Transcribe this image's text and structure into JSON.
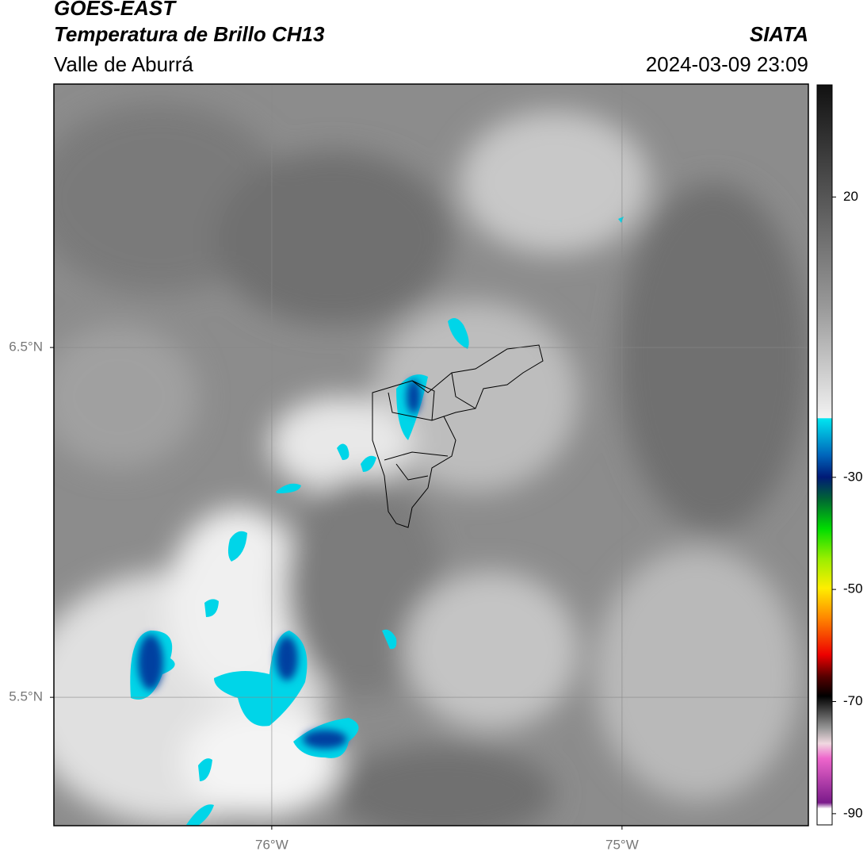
{
  "header": {
    "title": "GOES-EAST",
    "subtitle": "Temperatura de Brillo CH13",
    "region": "Valle de Aburrá",
    "source": "SIATA",
    "datetime": "2024-03-09 23:09"
  },
  "map": {
    "xlim": [
      -76.622,
      -74.468
    ],
    "ylim": [
      5.133,
      7.253
    ],
    "xticks": [
      {
        "value": -76,
        "label": "76°W"
      },
      {
        "value": -75,
        "label": "75°W"
      }
    ],
    "yticks": [
      {
        "value": 6.5,
        "label": "6.5°N"
      },
      {
        "value": 5.5,
        "label": "5.5°N"
      }
    ],
    "grid": true
  },
  "colorbar": {
    "lim": [
      -92,
      40
    ],
    "ticks": [
      20,
      -30,
      -50,
      -70,
      -90
    ]
  }
}
